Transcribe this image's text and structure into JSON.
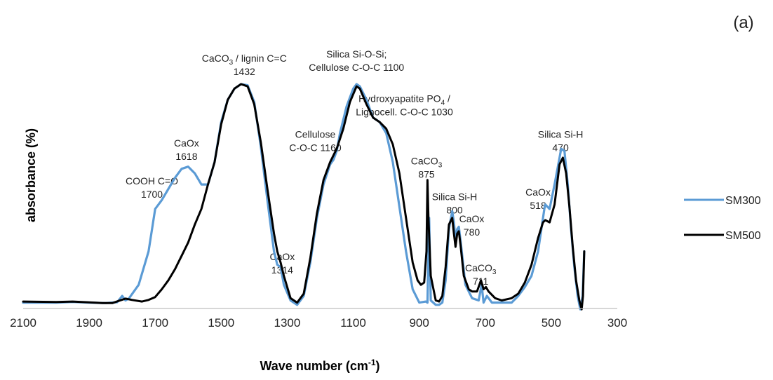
{
  "panel_label": "(a)",
  "chart_data": {
    "type": "line",
    "xlabel": "Wave number (cm",
    "xlabel_sup": "-1",
    "xlabel_suffix": ")",
    "ylabel": "absorbance (%)",
    "xlim": [
      2100,
      300
    ],
    "x_reversed": true,
    "xticks": [
      "2100",
      "1900",
      "1700",
      "1500",
      "1300",
      "1100",
      "900",
      "700",
      "500",
      "300"
    ],
    "ylim": [
      0,
      100
    ],
    "grid": false,
    "legend_position": "right",
    "colors": {
      "SM300": "#5b9bd5",
      "SM500": "#000000"
    },
    "series": [
      {
        "name": "SM300",
        "points": [
          [
            2100,
            2
          ],
          [
            2000,
            2
          ],
          [
            1950,
            2.3
          ],
          [
            1900,
            2
          ],
          [
            1850,
            1.8
          ],
          [
            1815,
            2.2
          ],
          [
            1800,
            5
          ],
          [
            1790,
            3
          ],
          [
            1780,
            3.8
          ],
          [
            1750,
            10
          ],
          [
            1720,
            25
          ],
          [
            1700,
            44
          ],
          [
            1680,
            48
          ],
          [
            1660,
            53
          ],
          [
            1640,
            58
          ],
          [
            1620,
            62
          ],
          [
            1600,
            63
          ],
          [
            1580,
            60
          ],
          [
            1560,
            55
          ],
          [
            1540,
            55
          ],
          [
            1520,
            65
          ],
          [
            1500,
            83
          ],
          [
            1480,
            93
          ],
          [
            1460,
            98
          ],
          [
            1440,
            100
          ],
          [
            1420,
            99.5
          ],
          [
            1400,
            92
          ],
          [
            1380,
            72
          ],
          [
            1360,
            48
          ],
          [
            1340,
            25
          ],
          [
            1330,
            19
          ],
          [
            1320,
            18
          ],
          [
            1310,
            10
          ],
          [
            1290,
            3
          ],
          [
            1270,
            1
          ],
          [
            1250,
            5
          ],
          [
            1230,
            20
          ],
          [
            1210,
            40
          ],
          [
            1190,
            55
          ],
          [
            1170,
            64
          ],
          [
            1160,
            66
          ],
          [
            1150,
            70
          ],
          [
            1140,
            78
          ],
          [
            1120,
            90
          ],
          [
            1100,
            98
          ],
          [
            1090,
            100
          ],
          [
            1080,
            99
          ],
          [
            1060,
            93
          ],
          [
            1040,
            85
          ],
          [
            1020,
            83
          ],
          [
            1000,
            78
          ],
          [
            980,
            65
          ],
          [
            960,
            45
          ],
          [
            940,
            25
          ],
          [
            920,
            8
          ],
          [
            900,
            2
          ],
          [
            880,
            2.5
          ],
          [
            875,
            2
          ],
          [
            870,
            40
          ],
          [
            865,
            3
          ],
          [
            850,
            1
          ],
          [
            840,
            1
          ],
          [
            830,
            2
          ],
          [
            820,
            12
          ],
          [
            810,
            35
          ],
          [
            800,
            43
          ],
          [
            795,
            38
          ],
          [
            790,
            30
          ],
          [
            785,
            35
          ],
          [
            780,
            36
          ],
          [
            775,
            30
          ],
          [
            760,
            10
          ],
          [
            740,
            4
          ],
          [
            720,
            3
          ],
          [
            711,
            10
          ],
          [
            705,
            2
          ],
          [
            695,
            5
          ],
          [
            680,
            2
          ],
          [
            650,
            2
          ],
          [
            620,
            2
          ],
          [
            600,
            5
          ],
          [
            580,
            9
          ],
          [
            560,
            14
          ],
          [
            540,
            25
          ],
          [
            520,
            45
          ],
          [
            518,
            46
          ],
          [
            505,
            44
          ],
          [
            490,
            55
          ],
          [
            475,
            67
          ],
          [
            470,
            71
          ],
          [
            460,
            70
          ],
          [
            450,
            55
          ],
          [
            440,
            35
          ],
          [
            430,
            18
          ],
          [
            420,
            5
          ],
          [
            412,
            -1
          ],
          [
            405,
            5
          ],
          [
            400,
            25
          ]
        ]
      },
      {
        "name": "SM500",
        "points": [
          [
            2100,
            2.5
          ],
          [
            2000,
            2.3
          ],
          [
            1950,
            2.5
          ],
          [
            1900,
            2.1
          ],
          [
            1860,
            1.8
          ],
          [
            1830,
            1.8
          ],
          [
            1810,
            2.8
          ],
          [
            1790,
            3.8
          ],
          [
            1770,
            3.2
          ],
          [
            1740,
            2.5
          ],
          [
            1720,
            3.2
          ],
          [
            1700,
            4.5
          ],
          [
            1680,
            8
          ],
          [
            1660,
            12
          ],
          [
            1640,
            17
          ],
          [
            1620,
            23
          ],
          [
            1600,
            29
          ],
          [
            1580,
            37
          ],
          [
            1560,
            44
          ],
          [
            1540,
            55
          ],
          [
            1520,
            65
          ],
          [
            1500,
            82
          ],
          [
            1480,
            93
          ],
          [
            1460,
            98
          ],
          [
            1440,
            100
          ],
          [
            1420,
            99
          ],
          [
            1400,
            91
          ],
          [
            1380,
            74
          ],
          [
            1360,
            53
          ],
          [
            1340,
            33
          ],
          [
            1330,
            25
          ],
          [
            1320,
            20
          ],
          [
            1310,
            14
          ],
          [
            1290,
            4
          ],
          [
            1270,
            2
          ],
          [
            1250,
            6
          ],
          [
            1230,
            22
          ],
          [
            1210,
            42
          ],
          [
            1190,
            57
          ],
          [
            1170,
            65
          ],
          [
            1150,
            71
          ],
          [
            1130,
            80
          ],
          [
            1110,
            92
          ],
          [
            1090,
            99
          ],
          [
            1080,
            98
          ],
          [
            1060,
            91
          ],
          [
            1040,
            85
          ],
          [
            1020,
            83
          ],
          [
            1000,
            80
          ],
          [
            980,
            73
          ],
          [
            960,
            60
          ],
          [
            940,
            40
          ],
          [
            920,
            20
          ],
          [
            905,
            12
          ],
          [
            895,
            10
          ],
          [
            885,
            11
          ],
          [
            878,
            25
          ],
          [
            875,
            57
          ],
          [
            872,
            40
          ],
          [
            865,
            14
          ],
          [
            850,
            3
          ],
          [
            840,
            2.5
          ],
          [
            830,
            5
          ],
          [
            820,
            18
          ],
          [
            810,
            37
          ],
          [
            800,
            40
          ],
          [
            795,
            33
          ],
          [
            790,
            27
          ],
          [
            785,
            33
          ],
          [
            780,
            34
          ],
          [
            775,
            28
          ],
          [
            765,
            14
          ],
          [
            750,
            8
          ],
          [
            740,
            7
          ],
          [
            725,
            7
          ],
          [
            713,
            12
          ],
          [
            705,
            8
          ],
          [
            698,
            9
          ],
          [
            690,
            7
          ],
          [
            670,
            4
          ],
          [
            650,
            3
          ],
          [
            620,
            4
          ],
          [
            600,
            6
          ],
          [
            580,
            11
          ],
          [
            560,
            19
          ],
          [
            540,
            31
          ],
          [
            525,
            38
          ],
          [
            518,
            39
          ],
          [
            505,
            38
          ],
          [
            490,
            46
          ],
          [
            475,
            64
          ],
          [
            465,
            67
          ],
          [
            455,
            60
          ],
          [
            445,
            45
          ],
          [
            435,
            27
          ],
          [
            425,
            12
          ],
          [
            415,
            3
          ],
          [
            408,
            -1
          ],
          [
            404,
            5
          ],
          [
            400,
            25
          ]
        ]
      }
    ],
    "annotations": [
      {
        "lines": [
          [
            "COOH C=O"
          ],
          [
            "1700"
          ]
        ],
        "x": 1710,
        "y": 55
      },
      {
        "lines": [
          [
            "CaOx"
          ],
          [
            "1618"
          ]
        ],
        "x": 1605,
        "y": 72
      },
      {
        "lines": [
          [
            "CaCO",
            "3",
            " / lignin C=C"
          ],
          [
            "1432"
          ]
        ],
        "x": 1430,
        "y": 110
      },
      {
        "lines": [
          [
            "CaOx"
          ],
          [
            "1314"
          ]
        ],
        "x": 1315,
        "y": 21
      },
      {
        "lines": [
          [
            "Cellulose"
          ],
          [
            "C-O-C 1160"
          ]
        ],
        "x": 1215,
        "y": 76
      },
      {
        "lines": [
          [
            "Silica Si-O-Si;"
          ],
          [
            "Cellulose C-O-C 1100"
          ]
        ],
        "x": 1090,
        "y": 112
      },
      {
        "lines": [
          [
            "Hydroxyapatite PO",
            "4",
            " /"
          ],
          [
            "Lignocell. C-O-C 1030"
          ]
        ],
        "x": 945,
        "y": 92
      },
      {
        "lines": [
          [
            "CaCO",
            "3"
          ],
          [
            "875"
          ]
        ],
        "x": 878,
        "y": 64
      },
      {
        "lines": [
          [
            "Silica Si-H"
          ],
          [
            "800"
          ]
        ],
        "x": 793,
        "y": 48
      },
      {
        "lines": [
          [
            "CaOx"
          ],
          [
            "780"
          ]
        ],
        "x": 741,
        "y": 38
      },
      {
        "lines": [
          [
            "CaCO",
            "3"
          ],
          [
            "711"
          ]
        ],
        "x": 714,
        "y": 16
      },
      {
        "lines": [
          [
            "CaOx"
          ],
          [
            "518"
          ]
        ],
        "x": 540,
        "y": 50
      },
      {
        "lines": [
          [
            "Silica Si-H"
          ],
          [
            "470"
          ]
        ],
        "x": 472,
        "y": 76
      }
    ]
  }
}
